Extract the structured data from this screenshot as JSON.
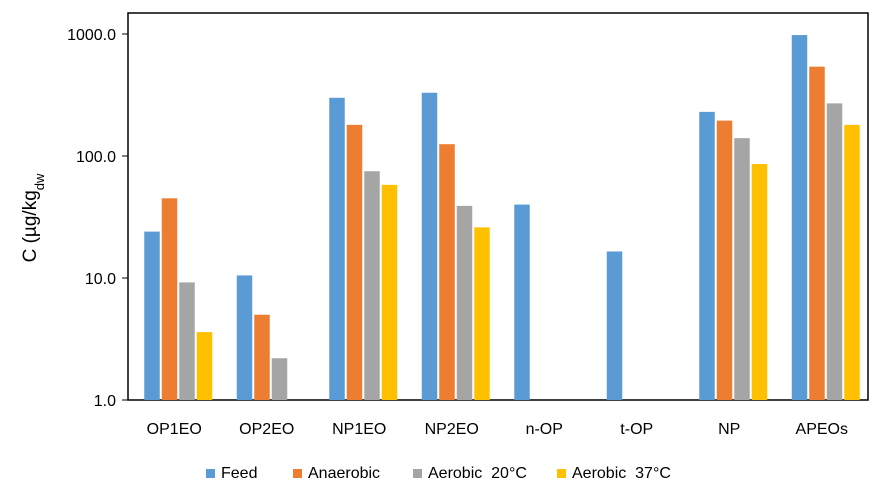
{
  "chart_data": {
    "type": "bar",
    "yscale": "log",
    "ylim": [
      1.0,
      1000.0
    ],
    "yticks": [
      1.0,
      10.0,
      100.0,
      1000.0
    ],
    "ytick_labels": [
      "1.0",
      "10.0",
      "100.0",
      "1000.0"
    ],
    "ylabel": {
      "main": "C (µg/kg",
      "sub": "dw"
    },
    "xlabel": "",
    "categories": [
      "OP1EO",
      "OP2EO",
      "NP1EO",
      "NP2EO",
      "n-OP",
      "t-OP",
      "NP",
      "APEOs"
    ],
    "series": [
      {
        "name": "Feed",
        "color": "#5B9BD5",
        "values": [
          24,
          10.5,
          300,
          330,
          40,
          16.5,
          230,
          980
        ]
      },
      {
        "name": "Anaerobic",
        "color": "#ED7D31",
        "values": [
          45,
          5,
          180,
          125,
          null,
          null,
          195,
          540
        ]
      },
      {
        "name": "Aerobic  20°C",
        "color": "#A5A5A5",
        "values": [
          9.2,
          2.2,
          75,
          39,
          null,
          null,
          140,
          270
        ]
      },
      {
        "name": "Aerobic  37°C",
        "color": "#FFC000",
        "values": [
          3.6,
          null,
          58,
          26,
          null,
          null,
          86,
          180
        ]
      }
    ],
    "grid": false,
    "legend_position": "bottom"
  }
}
